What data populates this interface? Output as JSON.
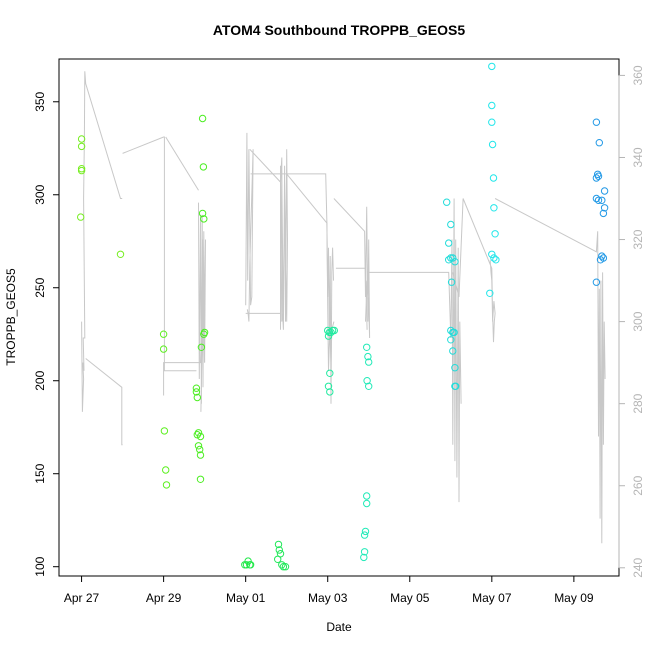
{
  "chart_data": {
    "type": "scatter",
    "title": "ATOM4 Southbound TROPPB_GEOS5",
    "xlabel": "Date",
    "ylabel": "TROPPB_GEOS5",
    "x_tick_labels": [
      "Apr 27",
      "Apr 29",
      "May 01",
      "May 03",
      "May 05",
      "May 07",
      "May 09"
    ],
    "x_ticks": [
      0,
      2,
      4,
      6,
      8,
      10,
      12
    ],
    "x_range_days": [
      -0.55,
      13.1
    ],
    "x_start_label": "Apr 27",
    "ylim": [
      95,
      373
    ],
    "y_ticks": [
      100,
      150,
      200,
      250,
      300,
      350
    ],
    "y2_ticks": [
      240,
      260,
      280,
      300,
      320,
      340,
      360
    ],
    "y2lim": [
      238,
      364
    ],
    "y2_color": "#b5b5b5",
    "points": [
      {
        "x": 0.0,
        "y": 330,
        "c": "#77ee22"
      },
      {
        "x": 0.0,
        "y": 326,
        "c": "#77ee22"
      },
      {
        "x": 0.0,
        "y": 314,
        "c": "#77ee22"
      },
      {
        "x": 0.0,
        "y": 313,
        "c": "#77ee22"
      },
      {
        "x": -0.02,
        "y": 288,
        "c": "#77ee22"
      },
      {
        "x": 0.95,
        "y": 268,
        "c": "#77ee22"
      },
      {
        "x": 2.0,
        "y": 225,
        "c": "#5ef022"
      },
      {
        "x": 2.0,
        "y": 217,
        "c": "#5ef022"
      },
      {
        "x": 2.02,
        "y": 173,
        "c": "#5ef022"
      },
      {
        "x": 2.05,
        "y": 152,
        "c": "#5ef022"
      },
      {
        "x": 2.07,
        "y": 144,
        "c": "#5ef022"
      },
      {
        "x": 2.95,
        "y": 341,
        "c": "#4cee22"
      },
      {
        "x": 2.97,
        "y": 315,
        "c": "#4cee22"
      },
      {
        "x": 2.95,
        "y": 290,
        "c": "#4cee22"
      },
      {
        "x": 2.98,
        "y": 287,
        "c": "#4cee22"
      },
      {
        "x": 3.0,
        "y": 226,
        "c": "#4cee22"
      },
      {
        "x": 2.98,
        "y": 225,
        "c": "#4cee22"
      },
      {
        "x": 2.92,
        "y": 218,
        "c": "#4cee22"
      },
      {
        "x": 2.8,
        "y": 196,
        "c": "#4cee22"
      },
      {
        "x": 2.8,
        "y": 194,
        "c": "#4cee22"
      },
      {
        "x": 2.82,
        "y": 191,
        "c": "#4cee22"
      },
      {
        "x": 2.85,
        "y": 172,
        "c": "#4cee22"
      },
      {
        "x": 2.82,
        "y": 171,
        "c": "#4cee22"
      },
      {
        "x": 2.9,
        "y": 170,
        "c": "#4cee22"
      },
      {
        "x": 2.85,
        "y": 165,
        "c": "#4cee22"
      },
      {
        "x": 2.88,
        "y": 163,
        "c": "#4cee22"
      },
      {
        "x": 2.9,
        "y": 160,
        "c": "#4cee22"
      },
      {
        "x": 2.9,
        "y": 147,
        "c": "#4cee22"
      },
      {
        "x": 3.98,
        "y": 101,
        "c": "#22e84a"
      },
      {
        "x": 4.02,
        "y": 101,
        "c": "#22e84a"
      },
      {
        "x": 4.06,
        "y": 103,
        "c": "#22e84a"
      },
      {
        "x": 4.1,
        "y": 101,
        "c": "#22e84a"
      },
      {
        "x": 4.12,
        "y": 101,
        "c": "#22e84a"
      },
      {
        "x": 4.8,
        "y": 112,
        "c": "#22e85a"
      },
      {
        "x": 4.82,
        "y": 109,
        "c": "#22e85a"
      },
      {
        "x": 4.85,
        "y": 107,
        "c": "#22e85a"
      },
      {
        "x": 4.78,
        "y": 104,
        "c": "#22e85a"
      },
      {
        "x": 4.88,
        "y": 101,
        "c": "#22e85a"
      },
      {
        "x": 4.92,
        "y": 100,
        "c": "#22e85a"
      },
      {
        "x": 4.97,
        "y": 100,
        "c": "#22e85a"
      },
      {
        "x": 6.0,
        "y": 227,
        "c": "#22eaa0"
      },
      {
        "x": 6.04,
        "y": 226,
        "c": "#22eaa0"
      },
      {
        "x": 6.08,
        "y": 226,
        "c": "#22eaa0"
      },
      {
        "x": 6.12,
        "y": 227,
        "c": "#22eaa0"
      },
      {
        "x": 6.16,
        "y": 227,
        "c": "#22eaa0"
      },
      {
        "x": 6.02,
        "y": 224,
        "c": "#22eaa0"
      },
      {
        "x": 6.05,
        "y": 204,
        "c": "#22eaa0"
      },
      {
        "x": 6.02,
        "y": 197,
        "c": "#22eaa0"
      },
      {
        "x": 6.05,
        "y": 194,
        "c": "#22eaa0"
      },
      {
        "x": 6.95,
        "y": 218,
        "c": "#22eab8"
      },
      {
        "x": 6.98,
        "y": 213,
        "c": "#22eab8"
      },
      {
        "x": 7.0,
        "y": 210,
        "c": "#22eab8"
      },
      {
        "x": 6.96,
        "y": 200,
        "c": "#22eab8"
      },
      {
        "x": 7.0,
        "y": 197,
        "c": "#22eab8"
      },
      {
        "x": 6.95,
        "y": 138,
        "c": "#22eab8"
      },
      {
        "x": 6.95,
        "y": 134,
        "c": "#22eab8"
      },
      {
        "x": 6.92,
        "y": 119,
        "c": "#22eab8"
      },
      {
        "x": 6.9,
        "y": 117,
        "c": "#22eab8"
      },
      {
        "x": 6.9,
        "y": 108,
        "c": "#22eab8"
      },
      {
        "x": 6.88,
        "y": 105,
        "c": "#22eab8"
      },
      {
        "x": 10.0,
        "y": 369,
        "c": "#22e6ea"
      },
      {
        "x": 10.0,
        "y": 348,
        "c": "#22e6ea"
      },
      {
        "x": 10.0,
        "y": 339,
        "c": "#22e6ea"
      },
      {
        "x": 10.02,
        "y": 327,
        "c": "#22e6ea"
      },
      {
        "x": 10.04,
        "y": 309,
        "c": "#22e6ea"
      },
      {
        "x": 10.05,
        "y": 293,
        "c": "#22e6ea"
      },
      {
        "x": 10.08,
        "y": 279,
        "c": "#22e6ea"
      },
      {
        "x": 10.0,
        "y": 268,
        "c": "#22e6ea"
      },
      {
        "x": 10.05,
        "y": 266,
        "c": "#22e6ea"
      },
      {
        "x": 10.1,
        "y": 265,
        "c": "#22e6ea"
      },
      {
        "x": 9.95,
        "y": 247,
        "c": "#22e6ea"
      },
      {
        "x": 8.9,
        "y": 296,
        "c": "#22dcda"
      },
      {
        "x": 9.0,
        "y": 284,
        "c": "#22dcda"
      },
      {
        "x": 8.95,
        "y": 274,
        "c": "#22dcda"
      },
      {
        "x": 9.0,
        "y": 266,
        "c": "#22dcda"
      },
      {
        "x": 8.95,
        "y": 265,
        "c": "#22dcda"
      },
      {
        "x": 9.05,
        "y": 266,
        "c": "#22dcda"
      },
      {
        "x": 9.1,
        "y": 264,
        "c": "#22dcda"
      },
      {
        "x": 9.02,
        "y": 253,
        "c": "#22dcda"
      },
      {
        "x": 9.0,
        "y": 227,
        "c": "#22dcda"
      },
      {
        "x": 9.05,
        "y": 226,
        "c": "#22dcda"
      },
      {
        "x": 9.08,
        "y": 226,
        "c": "#22dcda"
      },
      {
        "x": 9.0,
        "y": 222,
        "c": "#22dcda"
      },
      {
        "x": 9.05,
        "y": 216,
        "c": "#22dcda"
      },
      {
        "x": 9.1,
        "y": 207,
        "c": "#22dcda"
      },
      {
        "x": 9.12,
        "y": 197,
        "c": "#22dcda"
      },
      {
        "x": 9.1,
        "y": 197,
        "c": "#22dcda"
      },
      {
        "x": 12.55,
        "y": 339,
        "c": "#2299e6"
      },
      {
        "x": 12.62,
        "y": 328,
        "c": "#2299e6"
      },
      {
        "x": 12.58,
        "y": 311,
        "c": "#2299e6"
      },
      {
        "x": 12.6,
        "y": 310,
        "c": "#2299e6"
      },
      {
        "x": 12.55,
        "y": 309,
        "c": "#2299e6"
      },
      {
        "x": 12.75,
        "y": 302,
        "c": "#2299e6"
      },
      {
        "x": 12.55,
        "y": 298,
        "c": "#2299e6"
      },
      {
        "x": 12.6,
        "y": 297,
        "c": "#2299e6"
      },
      {
        "x": 12.68,
        "y": 297,
        "c": "#2299e6"
      },
      {
        "x": 12.75,
        "y": 293,
        "c": "#2299e6"
      },
      {
        "x": 12.72,
        "y": 290,
        "c": "#2299e6"
      },
      {
        "x": 12.68,
        "y": 267,
        "c": "#2299e6"
      },
      {
        "x": 12.72,
        "y": 266,
        "c": "#2299e6"
      },
      {
        "x": 12.65,
        "y": 265,
        "c": "#2299e6"
      },
      {
        "x": 12.55,
        "y": 253,
        "c": "#2299e6"
      }
    ],
    "line_series": [
      {
        "x": [
          0.0,
          0.02,
          0.05,
          0.03,
          0.06,
          0.04,
          0.08,
          0.05,
          0.07,
          0.08,
          0.1,
          0.1,
          0.95,
          0.97,
          0.99
        ],
        "y": [
          300,
          278,
          286,
          290,
          288,
          296,
          296,
          330,
          345,
          361,
          358,
          358,
          330,
          330,
          330
        ]
      },
      {
        "x": [
          0.1,
          0.98,
          0.98,
          1.0,
          1.0,
          1.0
        ],
        "y": [
          291,
          284,
          270,
          270,
          270,
          270
        ]
      },
      {
        "x": [
          1.0,
          2.0,
          2.02,
          2.02,
          2.8,
          2.8
        ],
        "y": [
          341,
          345,
          345,
          288,
          288,
          288
        ]
      },
      {
        "x": [
          2.05,
          2.85
        ],
        "y": [
          345,
          332
        ]
      },
      {
        "x": [
          2.85,
          2.87,
          2.9,
          2.92,
          2.94,
          2.96,
          2.98,
          3.0,
          3.02,
          3.0,
          2.97,
          2.94,
          2.91
        ],
        "y": [
          329,
          286,
          326,
          280,
          326,
          284,
          322,
          290,
          320,
          302,
          297,
          298,
          278
        ]
      },
      {
        "x": [
          2.0,
          2.0,
          2.9,
          2.93,
          2.95,
          2.98,
          3.0
        ],
        "y": [
          282,
          290,
          290,
          300,
          320,
          300,
          290
        ]
      },
      {
        "x": [
          4.0,
          4.03,
          4.05,
          4.08,
          4.12,
          4.15,
          4.18,
          4.1,
          4.08,
          4.06,
          4.04
        ],
        "y": [
          304,
          346,
          310,
          342,
          304,
          306,
          342,
          314,
          300,
          302,
          303
        ]
      },
      {
        "x": [
          4.1,
          4.85,
          4.85,
          4.88,
          4.92,
          4.95,
          4.97,
          5.0,
          5.02,
          5.0,
          4.98,
          4.95,
          4.92,
          4.9,
          4.88,
          4.85
        ],
        "y": [
          342,
          334,
          298,
          336,
          298,
          338,
          300,
          342,
          320,
          300,
          312,
          336,
          298,
          302,
          340,
          334
        ]
      },
      {
        "x": [
          4.0,
          4.85,
          4.85,
          4.88,
          4.9
        ],
        "y": [
          302,
          302,
          338,
          300,
          302
        ]
      },
      {
        "x": [
          4.12,
          5.95,
          5.98,
          6.0,
          6.02,
          6.04,
          6.06,
          6.08,
          6.1,
          6.12,
          6.14
        ],
        "y": [
          336,
          336,
          324,
          306,
          318,
          296,
          316,
          280,
          312,
          318,
          310
        ]
      },
      {
        "x": [
          5.0,
          5.98,
          6.0,
          6.02,
          6.05,
          6.08,
          6.1,
          6.15
        ],
        "y": [
          336,
          324,
          304,
          288,
          298,
          290,
          298,
          300
        ]
      },
      {
        "x": [
          6.15,
          6.9,
          6.92,
          6.95,
          6.98,
          7.0,
          7.02,
          7.0,
          6.96,
          6.92
        ],
        "y": [
          330,
          322,
          306,
          328,
          300,
          320,
          296,
          304,
          310,
          300
        ]
      },
      {
        "x": [
          6.2,
          6.92,
          6.96
        ],
        "y": [
          313,
          313,
          298
        ]
      },
      {
        "x": [
          6.98,
          8.95,
          8.98,
          9.0,
          9.03,
          9.05,
          9.08,
          9.1,
          9.12,
          9.15,
          9.18,
          9.2,
          9.22,
          9.25
        ],
        "y": [
          312,
          312,
          302,
          296,
          320,
          270,
          330,
          266,
          320,
          262,
          318,
          256,
          300,
          280
        ]
      },
      {
        "x": [
          9.05,
          9.2,
          9.3,
          10.0,
          10.02,
          10.04,
          10.06,
          10.08,
          10.05,
          10.02,
          10.0,
          9.98,
          9.96
        ],
        "y": [
          312,
          306,
          330,
          313,
          302,
          295,
          300,
          302,
          305,
          300,
          310,
          312,
          315
        ]
      },
      {
        "x": [
          10.08,
          12.55,
          12.58,
          12.6,
          12.62,
          12.64,
          12.66,
          12.68,
          12.7,
          12.72,
          12.74,
          12.76
        ],
        "y": [
          330,
          317,
          322,
          272,
          308,
          252,
          310,
          246,
          312,
          270,
          300,
          286
        ]
      }
    ]
  }
}
